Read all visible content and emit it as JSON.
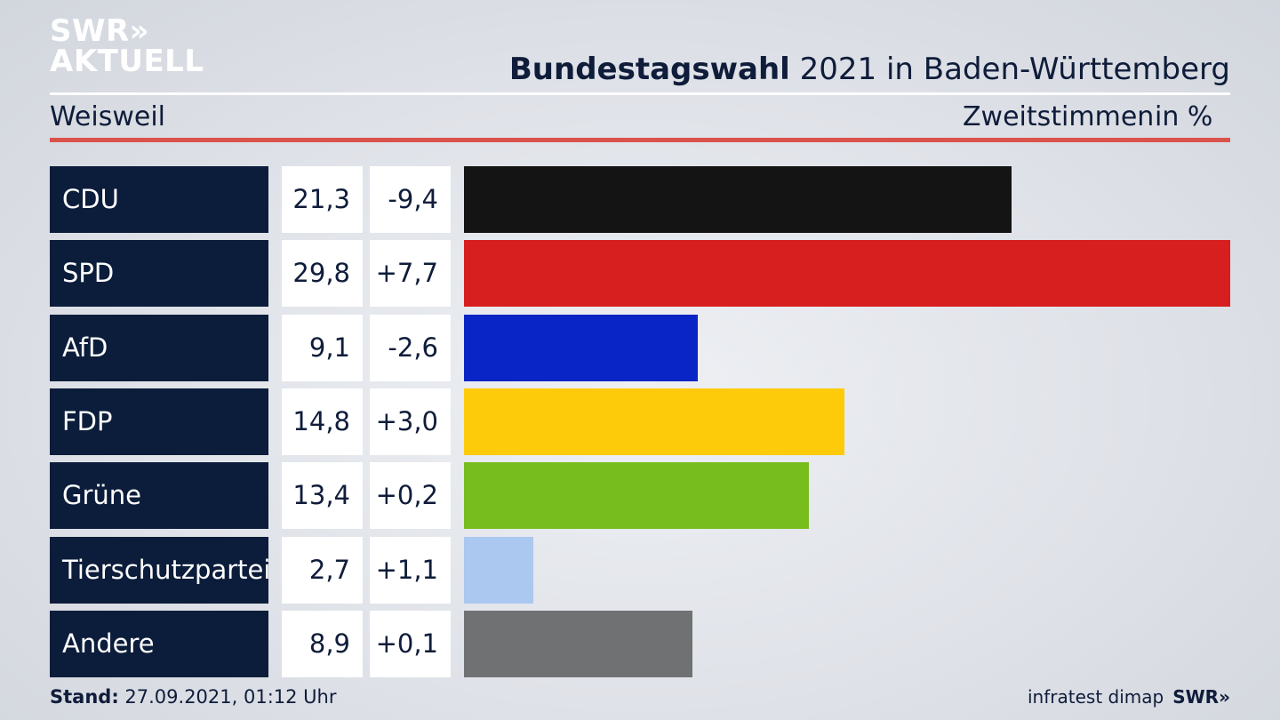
{
  "logo": {
    "line1": "SWR»",
    "line2": "AKTUELL"
  },
  "header": {
    "title_bold": "Bundestagswahl",
    "title_rest": " 2021 in Baden-Württemberg",
    "subtitle": "Weisweil",
    "measure": "Zweitstimmen",
    "unit": "in %"
  },
  "footer": {
    "stand_label": "Stand:",
    "stand_value": " 27.09.2021, 01:12 Uhr",
    "source": "infratest dimap",
    "brand": "SWR»"
  },
  "chart_data": {
    "type": "bar",
    "orientation": "horizontal",
    "title": "Bundestagswahl 2021 in Baden-Württemberg",
    "subtitle": "Weisweil",
    "categories": [
      "CDU",
      "SPD",
      "AfD",
      "FDP",
      "Grüne",
      "Tierschutzpartei",
      "Andere"
    ],
    "values": [
      21.3,
      29.8,
      9.1,
      14.8,
      13.4,
      2.7,
      8.9
    ],
    "value_labels": [
      "21,3",
      "29,8",
      "9,1",
      "14,8",
      "13,4",
      "2,7",
      "8,9"
    ],
    "diff_labels": [
      "-9,4",
      "+7,7",
      "-2,6",
      "+3,0",
      "+0,2",
      "+1,1",
      "+0,1"
    ],
    "colors": [
      "#141414",
      "#d71f1f",
      "#0a25c5",
      "#fecb0a",
      "#78bd1e",
      "#aac8f0",
      "#707173"
    ],
    "xlim": [
      0,
      29.8
    ]
  }
}
